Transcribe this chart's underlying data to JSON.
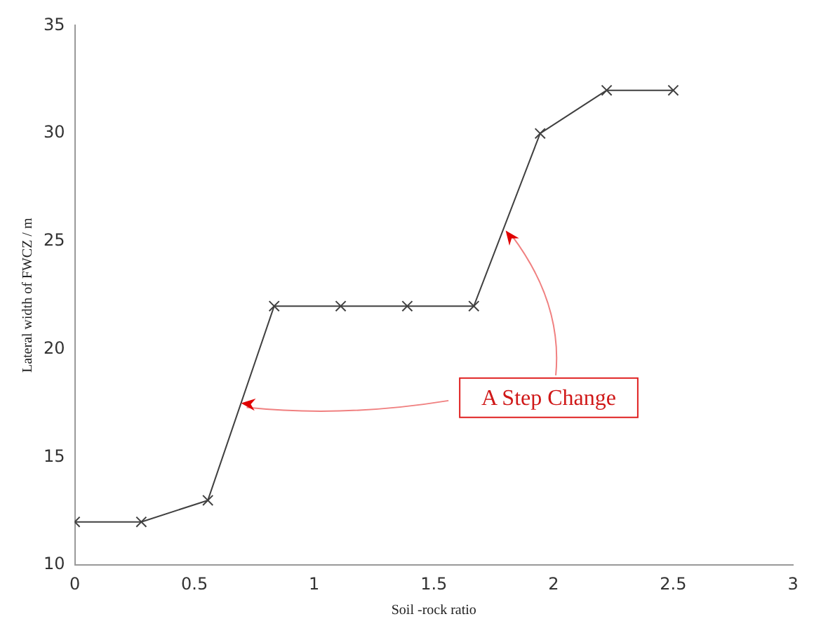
{
  "chart_data": {
    "type": "line",
    "xlabel": "Soil -rock ratio",
    "ylabel": "Lateral width of FWCZ / m",
    "x": [
      0,
      0.278,
      0.556,
      0.833,
      1.111,
      1.389,
      1.667,
      1.944,
      2.222,
      2.5
    ],
    "series": [
      {
        "color": "#404040",
        "values": [
          12,
          12,
          13,
          22,
          22,
          22,
          22,
          30,
          32,
          32
        ]
      }
    ],
    "xlim": [
      0,
      3
    ],
    "xticks": [
      0,
      0.5,
      1,
      1.5,
      2,
      2.5,
      3
    ],
    "ylim": [
      10,
      35
    ],
    "yticks": [
      10,
      15,
      20,
      25,
      30,
      35
    ],
    "grid": false,
    "legend": false,
    "marker": "cross",
    "line_style": "solid",
    "annotations": [
      {
        "text": "A Step Change",
        "x": 1.8,
        "y": 25.5
      }
    ]
  }
}
